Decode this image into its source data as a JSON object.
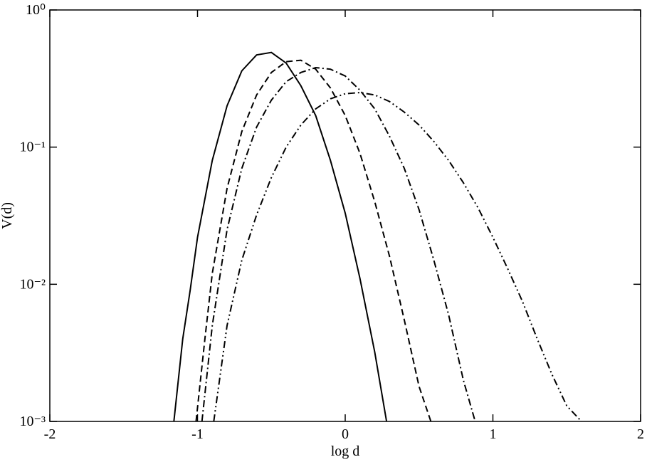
{
  "chart_data": {
    "type": "line",
    "xlabel": "log d",
    "ylabel": "V(d)",
    "ylog": true,
    "xlim": [
      -2,
      2
    ],
    "ylim": [
      0.001,
      1
    ],
    "xticks": [
      -2,
      -1,
      0,
      1,
      2
    ],
    "yticks": [
      {
        "value": 0.001,
        "label": "10⁻³"
      },
      {
        "value": 0.01,
        "label": "10⁻²"
      },
      {
        "value": 0.1,
        "label": "10⁻¹"
      },
      {
        "value": 1,
        "label": "10⁰"
      }
    ],
    "series": [
      {
        "color": "#000000",
        "style": "solid",
        "x": [
          -1.16,
          -1.1,
          -1.05,
          -1.0,
          -0.9,
          -0.8,
          -0.7,
          -0.6,
          -0.5,
          -0.4,
          -0.3,
          -0.2,
          -0.1,
          0.0,
          0.1,
          0.2,
          0.28
        ],
        "values": [
          0.001,
          0.004,
          0.009,
          0.022,
          0.08,
          0.2,
          0.36,
          0.47,
          0.49,
          0.41,
          0.28,
          0.17,
          0.08,
          0.033,
          0.011,
          0.0032,
          0.001
        ]
      },
      {
        "color": "#000000",
        "style": "dashed",
        "x": [
          -1.01,
          -0.95,
          -0.9,
          -0.8,
          -0.7,
          -0.6,
          -0.5,
          -0.4,
          -0.3,
          -0.2,
          -0.1,
          0.0,
          0.1,
          0.2,
          0.3,
          0.4,
          0.5,
          0.58
        ],
        "values": [
          0.001,
          0.004,
          0.012,
          0.05,
          0.13,
          0.24,
          0.35,
          0.42,
          0.43,
          0.37,
          0.27,
          0.17,
          0.09,
          0.04,
          0.016,
          0.0055,
          0.0018,
          0.001
        ]
      },
      {
        "color": "#000000",
        "style": "dash-dot",
        "x": [
          -0.97,
          -0.9,
          -0.8,
          -0.7,
          -0.6,
          -0.5,
          -0.4,
          -0.3,
          -0.2,
          -0.1,
          0.0,
          0.1,
          0.2,
          0.3,
          0.4,
          0.5,
          0.6,
          0.7,
          0.8,
          0.88
        ],
        "values": [
          0.001,
          0.005,
          0.025,
          0.07,
          0.14,
          0.22,
          0.3,
          0.35,
          0.38,
          0.37,
          0.33,
          0.26,
          0.19,
          0.12,
          0.07,
          0.035,
          0.015,
          0.006,
          0.002,
          0.001
        ]
      },
      {
        "color": "#000000",
        "style": "dash-dot-dot",
        "x": [
          -0.89,
          -0.8,
          -0.7,
          -0.6,
          -0.5,
          -0.4,
          -0.3,
          -0.2,
          -0.1,
          0.0,
          0.1,
          0.2,
          0.3,
          0.4,
          0.5,
          0.6,
          0.7,
          0.8,
          0.9,
          1.0,
          1.1,
          1.2,
          1.3,
          1.4,
          1.5,
          1.6
        ],
        "values": [
          0.001,
          0.005,
          0.015,
          0.032,
          0.06,
          0.1,
          0.145,
          0.19,
          0.225,
          0.245,
          0.25,
          0.24,
          0.215,
          0.18,
          0.145,
          0.11,
          0.08,
          0.055,
          0.036,
          0.022,
          0.013,
          0.0075,
          0.004,
          0.0022,
          0.0013,
          0.001
        ]
      }
    ]
  }
}
